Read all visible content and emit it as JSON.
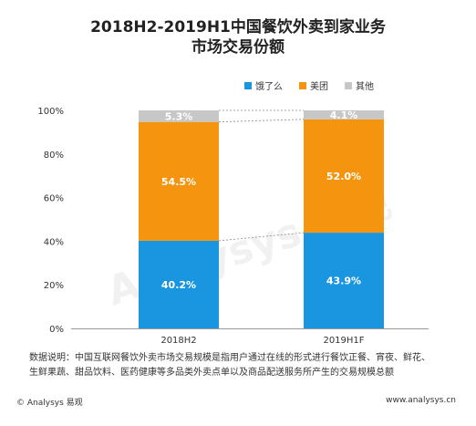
{
  "title_line1": "2018H2-2019H1中国餐饮外卖到家业务",
  "title_line2": "市场交易份额",
  "legend": [
    {
      "label": "饿了么",
      "color": "#1a96e0"
    },
    {
      "label": "美团",
      "color": "#f5940e"
    },
    {
      "label": "其他",
      "color": "#c7c7c7"
    }
  ],
  "chart_data": {
    "type": "bar",
    "stacked": true,
    "categories": [
      "2018H2",
      "2019H1F"
    ],
    "series": [
      {
        "name": "饿了么",
        "color": "#1a96e0",
        "values": [
          40.2,
          43.9
        ],
        "labels": [
          "40.2%",
          "43.9%"
        ]
      },
      {
        "name": "美团",
        "color": "#f5940e",
        "values": [
          54.5,
          52.0
        ],
        "labels": [
          "54.5%",
          "52.0%"
        ]
      },
      {
        "name": "其他",
        "color": "#c7c7c7",
        "values": [
          5.3,
          4.1
        ],
        "labels": [
          "5.3%",
          "4.1%"
        ]
      }
    ],
    "ylim": [
      0,
      100
    ],
    "yticks": [
      "0%",
      "20%",
      "40%",
      "60%",
      "80%",
      "100%"
    ],
    "connector_lines": true
  },
  "note_line1": "数据说明：中国互联网餐饮外卖市场交易规模是指用户通过在线的形式进行餐饮正餐、宵夜、鲜花、",
  "note_line2": "生鲜果蔬、甜品饮料、医药健康等多品类外卖点单以及商品配送服务所产生的交易规模总额",
  "footer_left": "© Analysys 易观",
  "footer_right": "www.analysys.cn",
  "watermark": "Analysys 易观"
}
